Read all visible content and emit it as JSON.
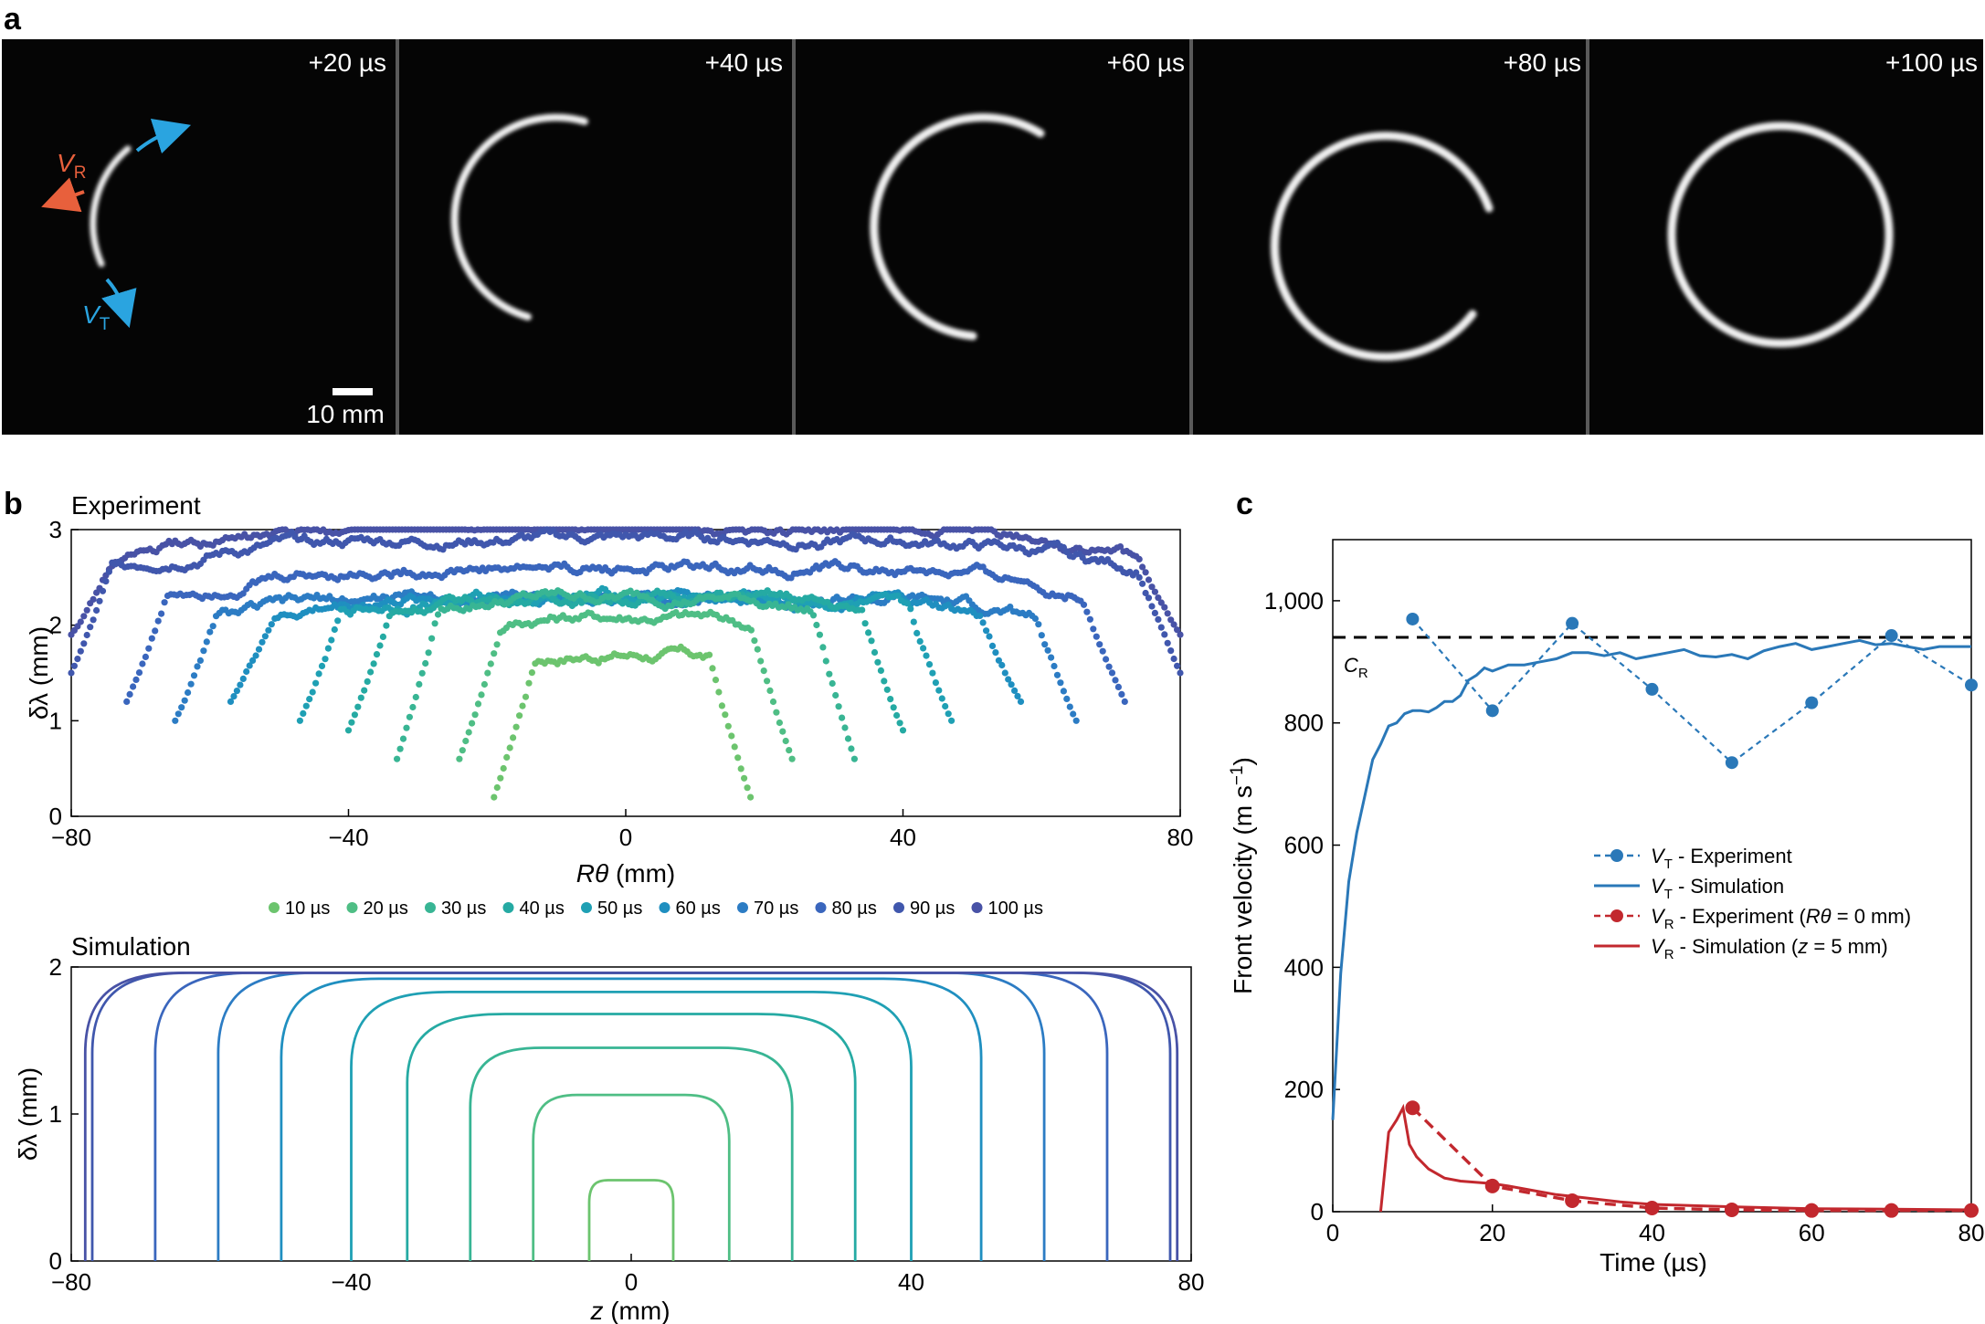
{
  "panel_labels": {
    "a": "a",
    "b": "b",
    "c": "c"
  },
  "panel_a": {
    "frames": [
      "+20 µs",
      "+40 µs",
      "+60 µs",
      "+80 µs",
      "+100 µs"
    ],
    "scale_bar": "10 mm",
    "vr_label": "V",
    "vr_sub": "R",
    "vt_label": "V",
    "vt_sub": "T",
    "colors": {
      "vr": "#e8603c",
      "vt": "#2aa4e0",
      "background": "#050505"
    }
  },
  "panel_b": {
    "experiment_title": "Experiment",
    "simulation_title": "Simulation",
    "legend": [
      "10 µs",
      "20 µs",
      "30 µs",
      "40 µs",
      "50 µs",
      "60 µs",
      "70 µs",
      "80 µs",
      "90 µs",
      "100 µs"
    ],
    "legend_colors": [
      "#6cc46e",
      "#4fbe85",
      "#38b594",
      "#25aaa3",
      "#1fa0b4",
      "#1f8fc0",
      "#2c7cc4",
      "#3a66bd",
      "#4057ad",
      "#4852a6"
    ]
  },
  "chart_data": [
    {
      "type": "scatter",
      "title": "Experiment",
      "xlabel": "Rθ (mm)",
      "ylabel": "δλ (mm)",
      "xlim": [
        -80,
        80
      ],
      "ylim": [
        0,
        3
      ],
      "xticks": [
        "−80",
        "−40",
        "0",
        "40",
        "80"
      ],
      "yticks": [
        "0",
        "1",
        "2",
        "3"
      ],
      "series": [
        {
          "name": "10 µs",
          "extent": [
            -19,
            18
          ],
          "peak": 1.7,
          "min": 0.2
        },
        {
          "name": "20 µs",
          "extent": [
            -24,
            24
          ],
          "peak": 2.1,
          "min": 0.6
        },
        {
          "name": "30 µs",
          "extent": [
            -33,
            33
          ],
          "peak": 2.3,
          "min": 0.6
        },
        {
          "name": "40 µs",
          "extent": [
            -40,
            40
          ],
          "peak": 2.3,
          "min": 0.9
        },
        {
          "name": "50 µs",
          "extent": [
            -47,
            47
          ],
          "peak": 2.3,
          "min": 1.0
        },
        {
          "name": "60 µs",
          "extent": [
            -57,
            57
          ],
          "peak": 2.3,
          "min": 1.2
        },
        {
          "name": "70 µs",
          "extent": [
            -65,
            65
          ],
          "peak": 2.3,
          "min": 1.0
        },
        {
          "name": "80 µs",
          "extent": [
            -72,
            72
          ],
          "peak": 2.6,
          "min": 1.2
        },
        {
          "name": "90 µs",
          "extent": [
            -80,
            80
          ],
          "peak": 2.9,
          "min": 1.5
        },
        {
          "name": "100 µs",
          "extent": [
            -80,
            80
          ],
          "peak": 3.0,
          "min": 1.9
        }
      ]
    },
    {
      "type": "line",
      "title": "Simulation",
      "xlabel": "z (mm)",
      "ylabel": "δλ (mm)",
      "xlim": [
        -80,
        80
      ],
      "ylim": [
        0,
        2
      ],
      "xticks": [
        "−80",
        "−40",
        "0",
        "40",
        "80"
      ],
      "yticks": [
        "0",
        "1",
        "2"
      ],
      "series": [
        {
          "name": "10 µs",
          "half_width": 6,
          "plateau": 0.55
        },
        {
          "name": "20 µs",
          "half_width": 14,
          "plateau": 1.13
        },
        {
          "name": "30 µs",
          "half_width": 23,
          "plateau": 1.45
        },
        {
          "name": "40 µs",
          "half_width": 32,
          "plateau": 1.68
        },
        {
          "name": "50 µs",
          "half_width": 40,
          "plateau": 1.83
        },
        {
          "name": "60 µs",
          "half_width": 50,
          "plateau": 1.92
        },
        {
          "name": "70 µs",
          "half_width": 59,
          "plateau": 1.96
        },
        {
          "name": "80 µs",
          "half_width": 68,
          "plateau": 1.96
        },
        {
          "name": "90 µs",
          "half_width": 77,
          "plateau": 1.96
        },
        {
          "name": "100 µs",
          "half_width": 78,
          "plateau": 1.96
        }
      ]
    },
    {
      "type": "line",
      "xlabel": "Time (µs)",
      "ylabel": "Front velocity (m s⁻¹)",
      "xlim": [
        0,
        80
      ],
      "ylim": [
        0,
        1100
      ],
      "xticks": [
        "0",
        "20",
        "40",
        "60",
        "80"
      ],
      "yticks": [
        "0",
        "200",
        "400",
        "600",
        "800",
        "1,000"
      ],
      "reference_line": {
        "label": "C",
        "sub": "R",
        "value": 940
      },
      "series": [
        {
          "name": "VT - Experiment",
          "style": "dashed-markers",
          "color": "#2a78b8",
          "x": [
            10,
            20,
            30,
            40,
            50,
            60,
            70,
            80
          ],
          "y": [
            970,
            820,
            963,
            855,
            735,
            833,
            943,
            862
          ]
        },
        {
          "name": "VT - Simulation",
          "style": "solid",
          "color": "#2a78b8",
          "x": [
            0,
            1,
            2,
            3,
            4,
            5,
            6,
            7,
            8,
            9,
            10,
            11,
            12,
            13,
            14,
            15,
            16,
            17,
            18,
            19,
            20,
            22,
            24,
            26,
            28,
            30,
            32,
            34,
            36,
            38,
            40,
            42,
            44,
            46,
            48,
            50,
            52,
            54,
            56,
            58,
            60,
            62,
            64,
            66,
            68,
            70,
            72,
            74,
            76,
            78,
            80
          ],
          "y": [
            150,
            390,
            540,
            620,
            680,
            740,
            765,
            795,
            800,
            815,
            820,
            820,
            818,
            825,
            835,
            835,
            845,
            870,
            878,
            890,
            885,
            895,
            895,
            900,
            905,
            915,
            915,
            910,
            915,
            905,
            910,
            915,
            920,
            910,
            908,
            912,
            905,
            918,
            925,
            930,
            920,
            925,
            930,
            935,
            928,
            930,
            925,
            920,
            925,
            925,
            925
          ]
        },
        {
          "name": "VR - Experiment (Rθ = 0 mm)",
          "style": "dashed-markers",
          "color": "#c2282e",
          "x": [
            10,
            20,
            30,
            40,
            50,
            60,
            70,
            80
          ],
          "y": [
            170,
            42,
            18,
            6,
            3,
            2,
            2,
            2
          ]
        },
        {
          "name": "VR - Simulation (z = 5 mm)",
          "style": "solid",
          "color": "#c2282e",
          "x": [
            6,
            7,
            8,
            8.8,
            9.6,
            10.5,
            12,
            14,
            16,
            18,
            20,
            22,
            25,
            28,
            32,
            36,
            40,
            50,
            60,
            70,
            80
          ],
          "y": [
            0,
            130,
            150,
            170,
            110,
            90,
            70,
            55,
            50,
            48,
            46,
            42,
            35,
            28,
            22,
            16,
            12,
            8,
            5,
            4,
            3
          ]
        }
      ]
    }
  ],
  "panel_c_legend": [
    {
      "v": "V",
      "sub": "T",
      "text": " - Experiment",
      "style": "dashed-markers",
      "color": "#2a78b8"
    },
    {
      "v": "V",
      "sub": "T",
      "text": " - Simulation",
      "style": "solid",
      "color": "#2a78b8"
    },
    {
      "v": "V",
      "sub": "R",
      "text": " - Experiment (",
      "italic": "Rθ",
      "text2": " = 0 mm)",
      "style": "dashed-markers",
      "color": "#c2282e"
    },
    {
      "v": "V",
      "sub": "R",
      "text": " - Simulation (",
      "italic": "z",
      "text2": " = 5 mm)",
      "style": "solid",
      "color": "#c2282e"
    }
  ]
}
